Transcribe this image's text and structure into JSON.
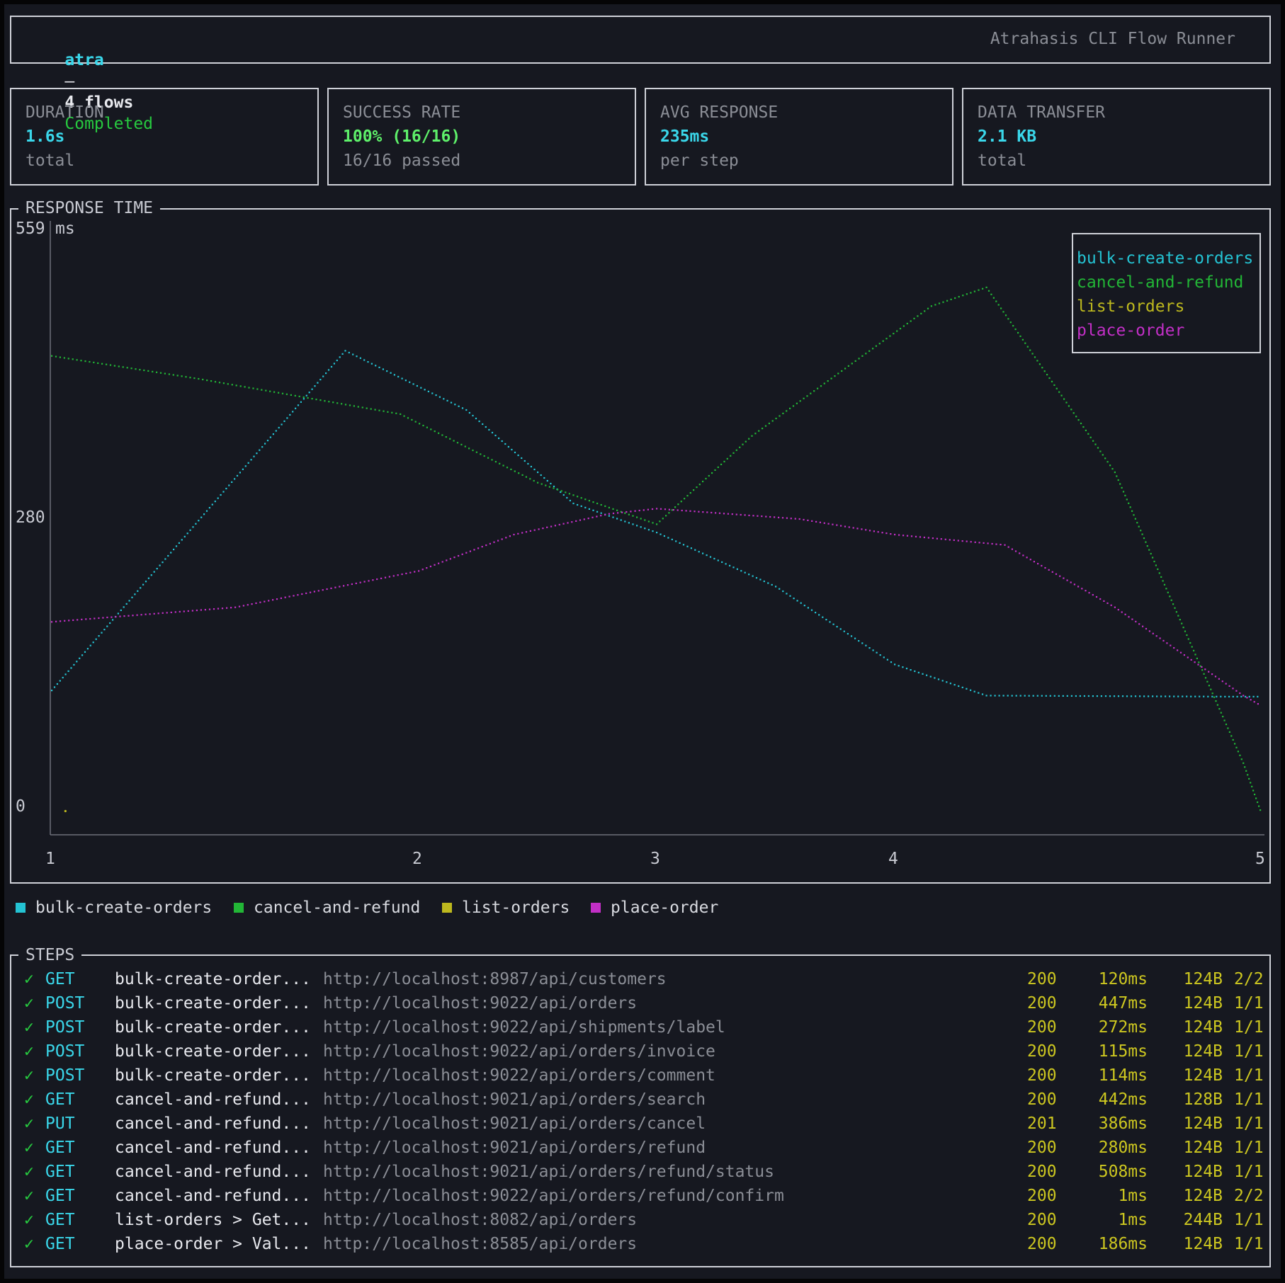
{
  "header": {
    "app": "atra",
    "dash": "—",
    "flows": "4 flows",
    "status": "Completed",
    "subtitle": "Atrahasis CLI Flow Runner"
  },
  "stats": [
    {
      "label": "DURATION",
      "value": "1.6s",
      "sub": "total",
      "color": "#3ad7ea"
    },
    {
      "label": "SUCCESS RATE",
      "value": "100% (16/16)",
      "sub": "16/16 passed",
      "color": "#5ef06a"
    },
    {
      "label": "AVG RESPONSE",
      "value": "235ms",
      "sub": "per step",
      "color": "#3ad7ea"
    },
    {
      "label": "DATA TRANSFER",
      "value": "2.1 KB",
      "sub": "total",
      "color": "#3ad7ea"
    }
  ],
  "chart_section_title": "RESPONSE TIME",
  "chart_data": {
    "type": "line",
    "ylabel": "ms",
    "ylim": [
      0,
      559
    ],
    "yticks": [
      "559",
      "280",
      "0"
    ],
    "xticks": [
      "1",
      "2",
      "3",
      "4",
      "5"
    ],
    "series": [
      {
        "name": "bulk-create-orders",
        "color": "#24c3d3",
        "points": [
          [
            1,
            120
          ],
          [
            1.8,
            447
          ],
          [
            2.2,
            390
          ],
          [
            2.65,
            300
          ],
          [
            3.0,
            272
          ],
          [
            3.5,
            220
          ],
          [
            4.0,
            145
          ],
          [
            4.25,
            115
          ],
          [
            4.9,
            114
          ],
          [
            5.0,
            114
          ]
        ]
      },
      {
        "name": "cancel-and-refund",
        "color": "#22b636",
        "points": [
          [
            1,
            442
          ],
          [
            1.4,
            420
          ],
          [
            1.95,
            386
          ],
          [
            2.5,
            320
          ],
          [
            3.0,
            280
          ],
          [
            3.4,
            365
          ],
          [
            4.1,
            490
          ],
          [
            4.25,
            508
          ],
          [
            4.6,
            330
          ],
          [
            4.95,
            50
          ],
          [
            5.0,
            1
          ]
        ]
      },
      {
        "name": "list-orders",
        "color": "#bdb81e",
        "points": [
          [
            1.02,
            1
          ]
        ]
      },
      {
        "name": "place-order",
        "color": "#c22fc6",
        "points": [
          [
            1,
            186
          ],
          [
            1.5,
            200
          ],
          [
            2.0,
            235
          ],
          [
            2.4,
            270
          ],
          [
            2.8,
            290
          ],
          [
            3.0,
            295
          ],
          [
            3.6,
            285
          ],
          [
            4.0,
            270
          ],
          [
            4.3,
            260
          ],
          [
            4.6,
            200
          ],
          [
            4.95,
            115
          ],
          [
            5.0,
            105
          ]
        ]
      }
    ],
    "legend_position": "top-right"
  },
  "bottom_legend": [
    {
      "name": "bulk-create-orders",
      "color": "#24c3d3"
    },
    {
      "name": "cancel-and-refund",
      "color": "#22b636"
    },
    {
      "name": "list-orders",
      "color": "#bdb81e"
    },
    {
      "name": "place-order",
      "color": "#c22fc6"
    }
  ],
  "steps_title": "STEPS",
  "steps": [
    {
      "check": "✓",
      "method": "GET",
      "name": "bulk-create-order...",
      "url": "http://localhost:8987/api/customers",
      "status": "200",
      "time": "120ms",
      "size": "124B",
      "count": "2/2"
    },
    {
      "check": "✓",
      "method": "POST",
      "name": "bulk-create-order...",
      "url": "http://localhost:9022/api/orders",
      "status": "200",
      "time": "447ms",
      "size": "124B",
      "count": "1/1"
    },
    {
      "check": "✓",
      "method": "POST",
      "name": "bulk-create-order...",
      "url": "http://localhost:9022/api/shipments/label",
      "status": "200",
      "time": "272ms",
      "size": "124B",
      "count": "1/1"
    },
    {
      "check": "✓",
      "method": "POST",
      "name": "bulk-create-order...",
      "url": "http://localhost:9022/api/orders/invoice",
      "status": "200",
      "time": "115ms",
      "size": "124B",
      "count": "1/1"
    },
    {
      "check": "✓",
      "method": "POST",
      "name": "bulk-create-order...",
      "url": "http://localhost:9022/api/orders/comment",
      "status": "200",
      "time": "114ms",
      "size": "124B",
      "count": "1/1"
    },
    {
      "check": "✓",
      "method": "GET",
      "name": "cancel-and-refund...",
      "url": "http://localhost:9021/api/orders/search",
      "status": "200",
      "time": "442ms",
      "size": "128B",
      "count": "1/1"
    },
    {
      "check": "✓",
      "method": "PUT",
      "name": "cancel-and-refund...",
      "url": "http://localhost:9021/api/orders/cancel",
      "status": "201",
      "time": "386ms",
      "size": "124B",
      "count": "1/1"
    },
    {
      "check": "✓",
      "method": "GET",
      "name": "cancel-and-refund...",
      "url": "http://localhost:9021/api/orders/refund",
      "status": "200",
      "time": "280ms",
      "size": "124B",
      "count": "1/1"
    },
    {
      "check": "✓",
      "method": "GET",
      "name": "cancel-and-refund...",
      "url": "http://localhost:9021/api/orders/refund/status",
      "status": "200",
      "time": "508ms",
      "size": "124B",
      "count": "1/1"
    },
    {
      "check": "✓",
      "method": "GET",
      "name": "cancel-and-refund...",
      "url": "http://localhost:9022/api/orders/refund/confirm",
      "status": "200",
      "time": "1ms",
      "size": "124B",
      "count": "2/2"
    },
    {
      "check": "✓",
      "method": "GET",
      "name": "list-orders > Get...",
      "url": "http://localhost:8082/api/orders",
      "status": "200",
      "time": "1ms",
      "size": "244B",
      "count": "1/1"
    },
    {
      "check": "✓",
      "method": "GET",
      "name": "place-order > Val...",
      "url": "http://localhost:8585/api/orders",
      "status": "200",
      "time": "186ms",
      "size": "124B",
      "count": "1/1"
    }
  ]
}
